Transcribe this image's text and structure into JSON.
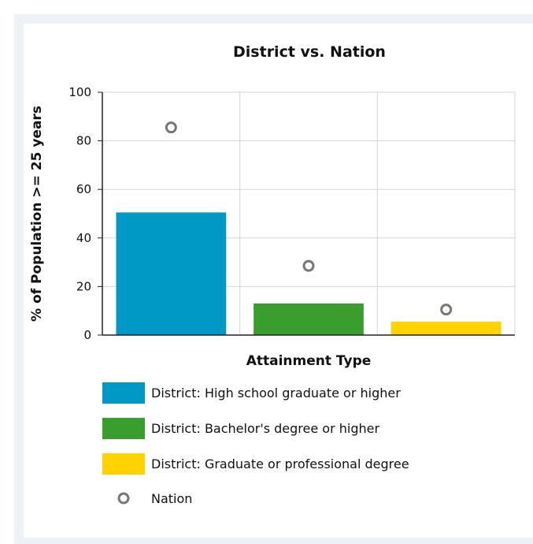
{
  "chart_data": {
    "type": "bar",
    "title": "District vs. Nation",
    "xlabel": "Attainment Type",
    "ylabel": "% of Population >= 25 years",
    "ylim": [
      0,
      100
    ],
    "yticks": [
      0,
      20,
      40,
      60,
      80,
      100
    ],
    "grid": true,
    "legend_position": "bottom",
    "series": [
      {
        "type": "bar",
        "entries": [
          {
            "label": "District: High school graduate or higher",
            "value": 50.5,
            "color": "#0099c6"
          },
          {
            "label": "District: Bachelor's degree or higher",
            "value": 13,
            "color": "#3a9e2e"
          },
          {
            "label": "District: Graduate or professional degree",
            "value": 5.5,
            "color": "#ffd200"
          }
        ]
      },
      {
        "name": "Nation",
        "type": "scatter",
        "marker": "open-circle",
        "color": "#777777",
        "values": [
          85.5,
          28.5,
          10.5
        ]
      }
    ]
  }
}
